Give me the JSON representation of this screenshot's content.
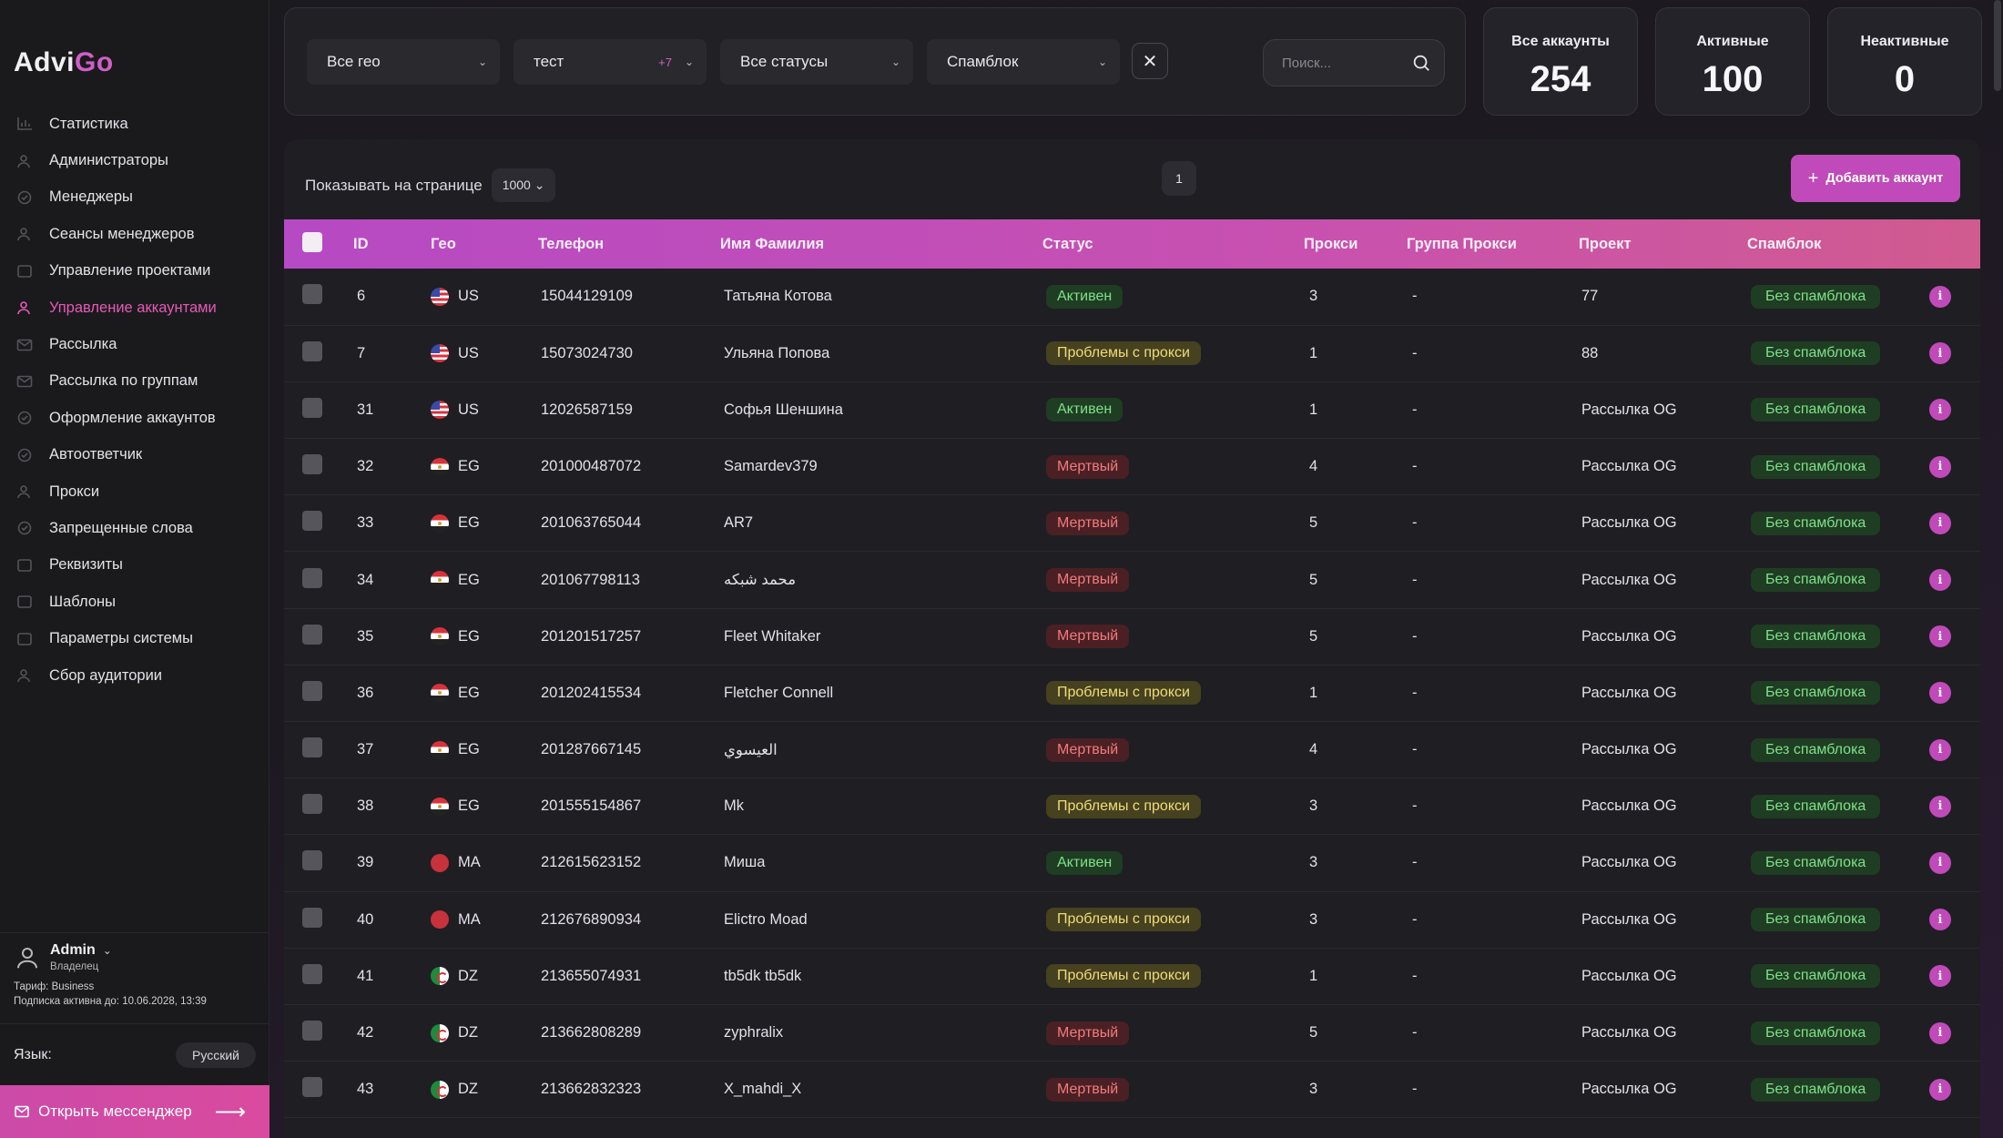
{
  "app": {
    "logo_main": "Advi",
    "logo_accent": "Go"
  },
  "sidebar": {
    "items": [
      {
        "label": "Статистика",
        "icon": "chart-icon",
        "active": false
      },
      {
        "label": "Администраторы",
        "icon": "admins-icon",
        "active": false
      },
      {
        "label": "Менеджеры",
        "icon": "headset-icon",
        "active": false
      },
      {
        "label": "Сеансы менеджеров",
        "icon": "user-sessions-icon",
        "active": false
      },
      {
        "label": "Управление проектами",
        "icon": "projects-icon",
        "active": false
      },
      {
        "label": "Управление аккаунтами",
        "icon": "accounts-icon",
        "active": true
      },
      {
        "label": "Рассылка",
        "icon": "mail-icon",
        "active": false
      },
      {
        "label": "Рассылка по группам",
        "icon": "group-mail-icon",
        "active": false
      },
      {
        "label": "Оформление аккаунтов",
        "icon": "check-circle-icon",
        "active": false
      },
      {
        "label": "Автоответчик",
        "icon": "autoreply-icon",
        "active": false
      },
      {
        "label": "Прокси",
        "icon": "proxy-icon",
        "active": false
      },
      {
        "label": "Запрещенные слова",
        "icon": "forbidden-words-icon",
        "active": false
      },
      {
        "label": "Реквизиты",
        "icon": "document-icon",
        "active": false
      },
      {
        "label": "Шаблоны",
        "icon": "template-icon",
        "active": false
      },
      {
        "label": "Параметры системы",
        "icon": "system-settings-icon",
        "active": false
      },
      {
        "label": "Сбор аудитории",
        "icon": "audience-icon",
        "active": false
      }
    ],
    "user": {
      "name": "Admin",
      "role": "Владелец",
      "tariff": "Тариф: Business",
      "subscription": "Подписка активна до: 10.06.2028, 13:39"
    },
    "language_label": "Язык:",
    "language_value": "Русский",
    "open_messenger": "Открыть мессенджер"
  },
  "filters": {
    "geo": "Все гео",
    "project": "тест",
    "project_extra": "+7",
    "status": "Все статусы",
    "spamblock": "Спамблок",
    "search_placeholder": "Поиск..."
  },
  "stats": [
    {
      "label": "Все аккаунты",
      "value": "254"
    },
    {
      "label": "Активные",
      "value": "100"
    },
    {
      "label": "Неактивные",
      "value": "0"
    }
  ],
  "table_controls": {
    "per_page_label": "Показывать на странице",
    "per_page_value": "1000",
    "page": "1",
    "add_button": "Добавить аккаунт"
  },
  "colors": {
    "accent": "#c04ab9",
    "active": "#7fe08a",
    "proxy_problem": "#f0dc7a",
    "dead": "#f27b7e"
  },
  "table": {
    "columns": [
      "ID",
      "Гео",
      "Телефон",
      "Имя Фамилия",
      "Статус",
      "Прокси",
      "Группа Прокси",
      "Проект",
      "Спамблок"
    ],
    "rows": [
      {
        "id": "6",
        "geo": "US",
        "phone": "15044129109",
        "name": "Татьяна Котова",
        "status": "Активен",
        "status_type": "active",
        "proxy": "3",
        "proxy_group": "-",
        "project": "77",
        "spamblock": "Без спамблока"
      },
      {
        "id": "7",
        "geo": "US",
        "phone": "15073024730",
        "name": "Ульяна Попова",
        "status": "Проблемы с прокси",
        "status_type": "proxy",
        "proxy": "1",
        "proxy_group": "-",
        "project": "88",
        "spamblock": "Без спамблока"
      },
      {
        "id": "31",
        "geo": "US",
        "phone": "12026587159",
        "name": "Софья Шеншина",
        "status": "Активен",
        "status_type": "active",
        "proxy": "1",
        "proxy_group": "-",
        "project": "Рассылка OG",
        "spamblock": "Без спамблока"
      },
      {
        "id": "32",
        "geo": "EG",
        "phone": "201000487072",
        "name": "Samardev379",
        "status": "Мертвый",
        "status_type": "dead",
        "proxy": "4",
        "proxy_group": "-",
        "project": "Рассылка OG",
        "spamblock": "Без спамблока"
      },
      {
        "id": "33",
        "geo": "EG",
        "phone": "201063765044",
        "name": "AR7",
        "status": "Мертвый",
        "status_type": "dead",
        "proxy": "5",
        "proxy_group": "-",
        "project": "Рассылка OG",
        "spamblock": "Без спамблока"
      },
      {
        "id": "34",
        "geo": "EG",
        "phone": "201067798113",
        "name": "محمد شبكه",
        "status": "Мертвый",
        "status_type": "dead",
        "proxy": "5",
        "proxy_group": "-",
        "project": "Рассылка OG",
        "spamblock": "Без спамблока"
      },
      {
        "id": "35",
        "geo": "EG",
        "phone": "201201517257",
        "name": "Fleet Whitaker",
        "status": "Мертвый",
        "status_type": "dead",
        "proxy": "5",
        "proxy_group": "-",
        "project": "Рассылка OG",
        "spamblock": "Без спамблока"
      },
      {
        "id": "36",
        "geo": "EG",
        "phone": "201202415534",
        "name": "Fletcher Connell",
        "status": "Проблемы с прокси",
        "status_type": "proxy",
        "proxy": "1",
        "proxy_group": "-",
        "project": "Рассылка OG",
        "spamblock": "Без спамблока"
      },
      {
        "id": "37",
        "geo": "EG",
        "phone": "201287667145",
        "name": "العيسوي",
        "status": "Мертвый",
        "status_type": "dead",
        "proxy": "4",
        "proxy_group": "-",
        "project": "Рассылка OG",
        "spamblock": "Без спамблока"
      },
      {
        "id": "38",
        "geo": "EG",
        "phone": "201555154867",
        "name": "Mk",
        "status": "Проблемы с прокси",
        "status_type": "proxy",
        "proxy": "3",
        "proxy_group": "-",
        "project": "Рассылка OG",
        "spamblock": "Без спамблока"
      },
      {
        "id": "39",
        "geo": "MA",
        "phone": "212615623152",
        "name": "Миша",
        "status": "Активен",
        "status_type": "active",
        "proxy": "3",
        "proxy_group": "-",
        "project": "Рассылка OG",
        "spamblock": "Без спамблока"
      },
      {
        "id": "40",
        "geo": "MA",
        "phone": "212676890934",
        "name": "Elictro Moad",
        "status": "Проблемы с прокси",
        "status_type": "proxy",
        "proxy": "3",
        "proxy_group": "-",
        "project": "Рассылка OG",
        "spamblock": "Без спамблока"
      },
      {
        "id": "41",
        "geo": "DZ",
        "phone": "213655074931",
        "name": "tb5dk tb5dk",
        "status": "Проблемы с прокси",
        "status_type": "proxy",
        "proxy": "1",
        "proxy_group": "-",
        "project": "Рассылка OG",
        "spamblock": "Без спамблока"
      },
      {
        "id": "42",
        "geo": "DZ",
        "phone": "213662808289",
        "name": "zyphralix",
        "status": "Мертвый",
        "status_type": "dead",
        "proxy": "5",
        "proxy_group": "-",
        "project": "Рассылка OG",
        "spamblock": "Без спамблока"
      },
      {
        "id": "43",
        "geo": "DZ",
        "phone": "213662832323",
        "name": "X_mahdi_X",
        "status": "Мертвый",
        "status_type": "dead",
        "proxy": "3",
        "proxy_group": "-",
        "project": "Рассылка OG",
        "spamblock": "Без спамблока"
      }
    ]
  }
}
